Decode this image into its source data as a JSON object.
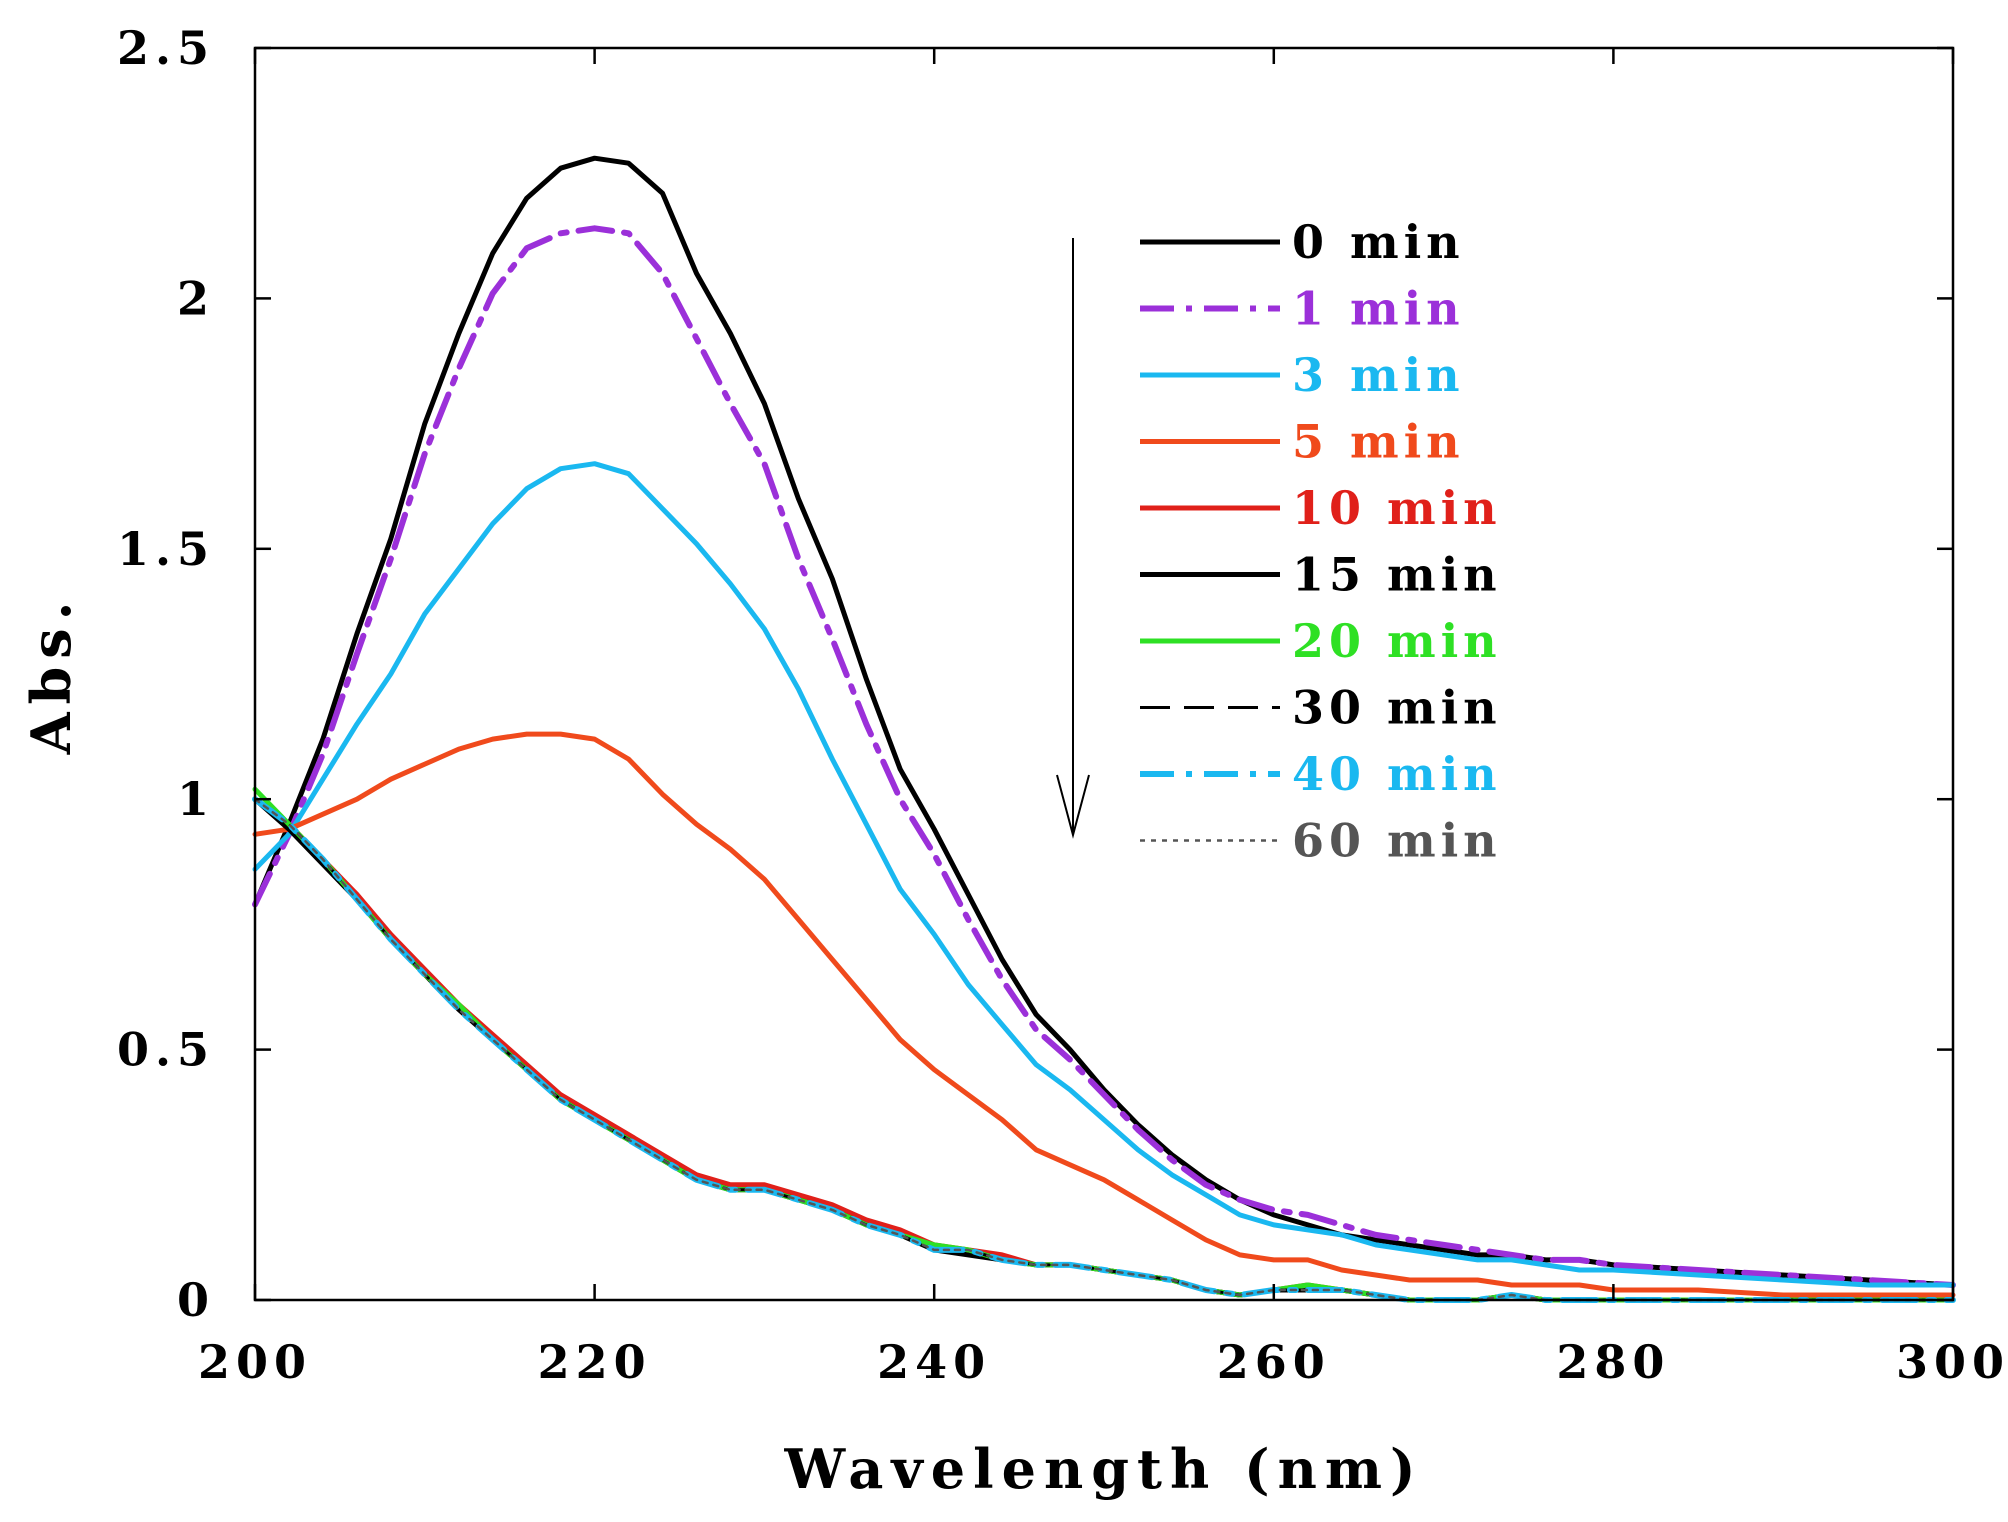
{
  "chart_data": {
    "type": "line",
    "title": "",
    "xlabel": "Wavelength (nm)",
    "ylabel": "Abs.",
    "xlim": [
      200,
      300
    ],
    "ylim": [
      0,
      2.5
    ],
    "xticks": [
      "200",
      "220",
      "240",
      "260",
      "280",
      "300"
    ],
    "yticks": [
      "0",
      "0.5",
      "1",
      "1.5",
      "2",
      "2.5"
    ],
    "grid": false,
    "legend_position": "upper-right inside",
    "annotation": "downward arrow indicating decreasing absorbance with time",
    "x": [
      200,
      202,
      204,
      206,
      208,
      210,
      212,
      214,
      216,
      218,
      220,
      222,
      224,
      226,
      228,
      230,
      232,
      234,
      236,
      238,
      240,
      242,
      244,
      246,
      248,
      250,
      252,
      254,
      256,
      258,
      260,
      262,
      264,
      266,
      268,
      270,
      272,
      274,
      276,
      278,
      280,
      285,
      290,
      295,
      300
    ],
    "series": [
      {
        "name": "0 min",
        "label": "0 min",
        "color": "#000000",
        "dash": "solid",
        "values": [
          0.79,
          0.95,
          1.12,
          1.33,
          1.52,
          1.75,
          1.93,
          2.09,
          2.2,
          2.26,
          2.28,
          2.27,
          2.21,
          2.05,
          1.93,
          1.79,
          1.6,
          1.44,
          1.24,
          1.06,
          0.94,
          0.81,
          0.68,
          0.57,
          0.5,
          0.42,
          0.35,
          0.29,
          0.24,
          0.2,
          0.17,
          0.15,
          0.13,
          0.12,
          0.11,
          0.1,
          0.09,
          0.09,
          0.08,
          0.08,
          0.07,
          0.06,
          0.05,
          0.04,
          0.03
        ]
      },
      {
        "name": "1 min",
        "label": "1 min",
        "color": "#9b30d9",
        "dash": "dashdot",
        "values": [
          0.79,
          0.93,
          1.09,
          1.29,
          1.48,
          1.69,
          1.86,
          2.01,
          2.1,
          2.13,
          2.14,
          2.13,
          2.05,
          1.92,
          1.79,
          1.67,
          1.48,
          1.32,
          1.15,
          1.0,
          0.89,
          0.76,
          0.64,
          0.54,
          0.48,
          0.41,
          0.34,
          0.28,
          0.23,
          0.2,
          0.18,
          0.17,
          0.15,
          0.13,
          0.12,
          0.11,
          0.1,
          0.09,
          0.08,
          0.08,
          0.07,
          0.06,
          0.05,
          0.04,
          0.03
        ]
      },
      {
        "name": "3 min",
        "label": "3 min",
        "color": "#1ab8f0",
        "dash": "solid",
        "values": [
          0.86,
          0.93,
          1.04,
          1.15,
          1.25,
          1.37,
          1.46,
          1.55,
          1.62,
          1.66,
          1.67,
          1.65,
          1.58,
          1.51,
          1.43,
          1.34,
          1.22,
          1.08,
          0.95,
          0.82,
          0.73,
          0.63,
          0.55,
          0.47,
          0.42,
          0.36,
          0.3,
          0.25,
          0.21,
          0.17,
          0.15,
          0.14,
          0.13,
          0.11,
          0.1,
          0.09,
          0.08,
          0.08,
          0.07,
          0.06,
          0.06,
          0.05,
          0.04,
          0.03,
          0.03
        ]
      },
      {
        "name": "5 min",
        "label": "5 min",
        "color": "#f04a1c",
        "dash": "solid",
        "values": [
          0.93,
          0.94,
          0.97,
          1.0,
          1.04,
          1.07,
          1.1,
          1.12,
          1.13,
          1.13,
          1.12,
          1.08,
          1.01,
          0.95,
          0.9,
          0.84,
          0.76,
          0.68,
          0.6,
          0.52,
          0.46,
          0.41,
          0.36,
          0.3,
          0.27,
          0.24,
          0.2,
          0.16,
          0.12,
          0.09,
          0.08,
          0.08,
          0.06,
          0.05,
          0.04,
          0.04,
          0.04,
          0.03,
          0.03,
          0.03,
          0.02,
          0.02,
          0.01,
          0.01,
          0.01
        ]
      },
      {
        "name": "10 min",
        "label": "10 min",
        "color": "#e0201a",
        "dash": "solid",
        "values": [
          1.0,
          0.95,
          0.88,
          0.81,
          0.73,
          0.66,
          0.59,
          0.53,
          0.47,
          0.41,
          0.37,
          0.33,
          0.29,
          0.25,
          0.23,
          0.23,
          0.21,
          0.19,
          0.16,
          0.14,
          0.11,
          0.1,
          0.09,
          0.07,
          0.07,
          0.06,
          0.05,
          0.04,
          0.02,
          0.01,
          0.02,
          0.03,
          0.02,
          0.01,
          0.0,
          0.0,
          0.0,
          0.01,
          0.0,
          0.0,
          0.0,
          0.0,
          0.0,
          0.0,
          0.0
        ]
      },
      {
        "name": "15 min",
        "label": "15 min",
        "color": "#000000",
        "dash": "solid",
        "values": [
          1.0,
          0.94,
          0.87,
          0.8,
          0.72,
          0.65,
          0.58,
          0.52,
          0.46,
          0.4,
          0.36,
          0.32,
          0.28,
          0.24,
          0.22,
          0.22,
          0.2,
          0.18,
          0.15,
          0.13,
          0.1,
          0.09,
          0.08,
          0.07,
          0.07,
          0.06,
          0.05,
          0.04,
          0.02,
          0.01,
          0.02,
          0.02,
          0.02,
          0.01,
          0.0,
          0.0,
          0.0,
          0.01,
          0.0,
          0.0,
          0.0,
          0.0,
          0.0,
          0.0,
          0.0
        ]
      },
      {
        "name": "20 min",
        "label": "20 min",
        "color": "#2ee024",
        "dash": "solid",
        "values": [
          1.02,
          0.95,
          0.88,
          0.8,
          0.72,
          0.65,
          0.59,
          0.52,
          0.46,
          0.4,
          0.36,
          0.32,
          0.28,
          0.24,
          0.22,
          0.22,
          0.2,
          0.18,
          0.15,
          0.13,
          0.11,
          0.1,
          0.08,
          0.07,
          0.07,
          0.06,
          0.05,
          0.04,
          0.02,
          0.01,
          0.02,
          0.03,
          0.02,
          0.01,
          0.0,
          0.0,
          0.0,
          0.01,
          0.0,
          0.0,
          0.0,
          0.0,
          0.0,
          0.0,
          0.0
        ]
      },
      {
        "name": "30 min",
        "label": "30 min",
        "color": "#000000",
        "dash": "longdash",
        "values": [
          1.0,
          0.95,
          0.88,
          0.8,
          0.72,
          0.65,
          0.58,
          0.52,
          0.46,
          0.4,
          0.36,
          0.32,
          0.28,
          0.24,
          0.22,
          0.22,
          0.2,
          0.18,
          0.15,
          0.13,
          0.1,
          0.1,
          0.08,
          0.07,
          0.07,
          0.06,
          0.05,
          0.04,
          0.02,
          0.01,
          0.02,
          0.02,
          0.02,
          0.01,
          0.0,
          0.0,
          0.0,
          0.01,
          0.0,
          0.0,
          0.0,
          0.0,
          0.0,
          0.0,
          0.0
        ]
      },
      {
        "name": "40 min",
        "label": "40 min",
        "color": "#1ab8f0",
        "dash": "dashdot",
        "values": [
          1.0,
          0.95,
          0.88,
          0.8,
          0.72,
          0.65,
          0.58,
          0.52,
          0.46,
          0.4,
          0.36,
          0.32,
          0.28,
          0.24,
          0.22,
          0.22,
          0.2,
          0.18,
          0.15,
          0.13,
          0.1,
          0.1,
          0.08,
          0.07,
          0.07,
          0.06,
          0.05,
          0.04,
          0.02,
          0.01,
          0.02,
          0.02,
          0.02,
          0.01,
          0.0,
          0.0,
          0.0,
          0.01,
          0.0,
          0.0,
          0.0,
          0.0,
          0.0,
          0.0,
          0.0
        ]
      },
      {
        "name": "60 min",
        "label": "60 min",
        "color": "#555555",
        "dash": "dotted",
        "values": [
          1.0,
          0.95,
          0.88,
          0.8,
          0.72,
          0.65,
          0.58,
          0.52,
          0.46,
          0.4,
          0.36,
          0.32,
          0.28,
          0.24,
          0.22,
          0.22,
          0.2,
          0.18,
          0.15,
          0.13,
          0.1,
          0.1,
          0.08,
          0.07,
          0.07,
          0.06,
          0.05,
          0.04,
          0.02,
          0.01,
          0.02,
          0.02,
          0.02,
          0.01,
          0.0,
          0.0,
          0.0,
          0.01,
          0.0,
          0.0,
          0.0,
          0.0,
          0.0,
          0.0,
          0.0
        ]
      }
    ]
  }
}
